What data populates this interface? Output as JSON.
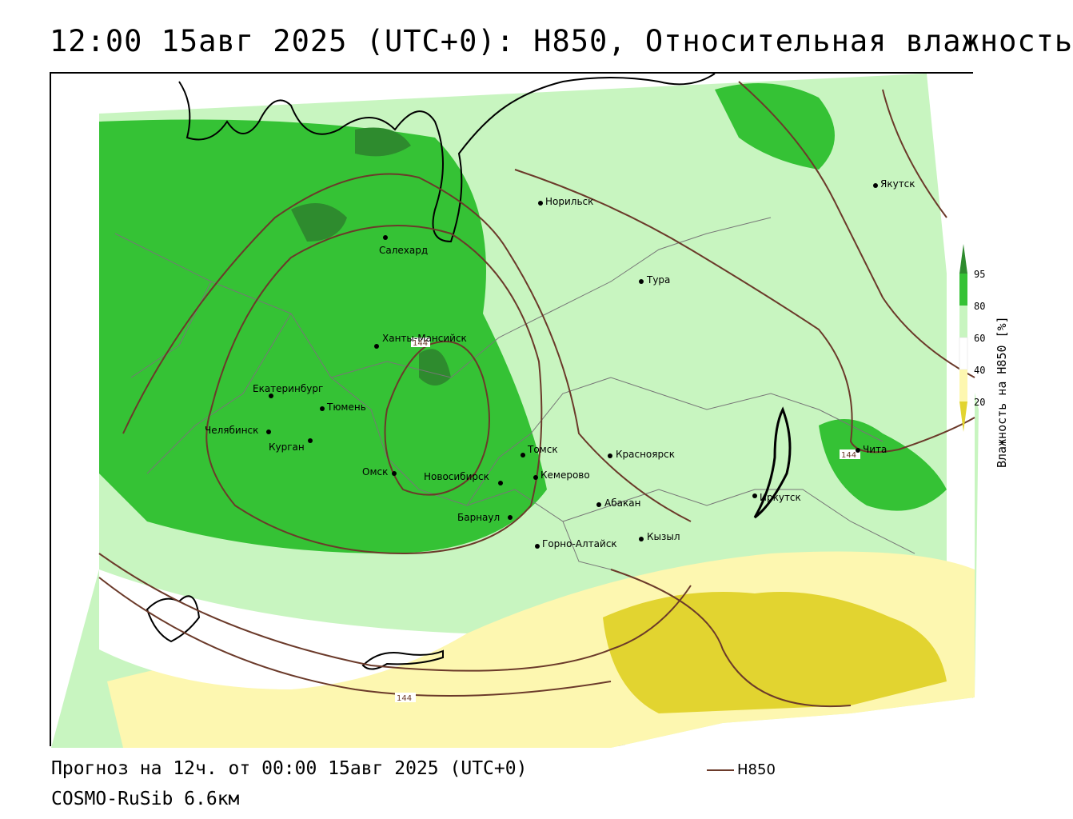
{
  "title": "12:00 15авг 2025 (UTC+0): H850, Относительная влажность",
  "footer": {
    "forecast": "Прогноз на 12ч. от 00:00 15авг 2025 (UTC+0)",
    "model": "COSMO-RuSib 6.6км"
  },
  "legend": {
    "line_label": "H850",
    "line_color": "#6b3a2a",
    "colorbar_title": "Влажность на H850 [%]",
    "ticks": [
      "95",
      "80",
      "60",
      "40",
      "20"
    ],
    "colors": {
      "above_95": "#2e8b2e",
      "80_95": "#35c235",
      "60_80": "#c8f5c0",
      "40_60": "#ffffff",
      "20_40": "#fdf7b0",
      "below_20": "#e2d430"
    }
  },
  "contour_labels": [
    "144",
    "144",
    "144"
  ],
  "cities": [
    {
      "name": "Норильск"
    },
    {
      "name": "Якутск"
    },
    {
      "name": "Салехард"
    },
    {
      "name": "Тура"
    },
    {
      "name": "Ханты-Мансийск"
    },
    {
      "name": "Екатеринбург"
    },
    {
      "name": "Тюмень"
    },
    {
      "name": "Челябинск"
    },
    {
      "name": "Курган"
    },
    {
      "name": "Омск"
    },
    {
      "name": "Новосибирск"
    },
    {
      "name": "Томск"
    },
    {
      "name": "Кемерово"
    },
    {
      "name": "Красноярск"
    },
    {
      "name": "Барнаул"
    },
    {
      "name": "Абакан"
    },
    {
      "name": "Горно-Алтайск"
    },
    {
      "name": "Кызыл"
    },
    {
      "name": "Иркутск"
    },
    {
      "name": "Чита"
    }
  ]
}
